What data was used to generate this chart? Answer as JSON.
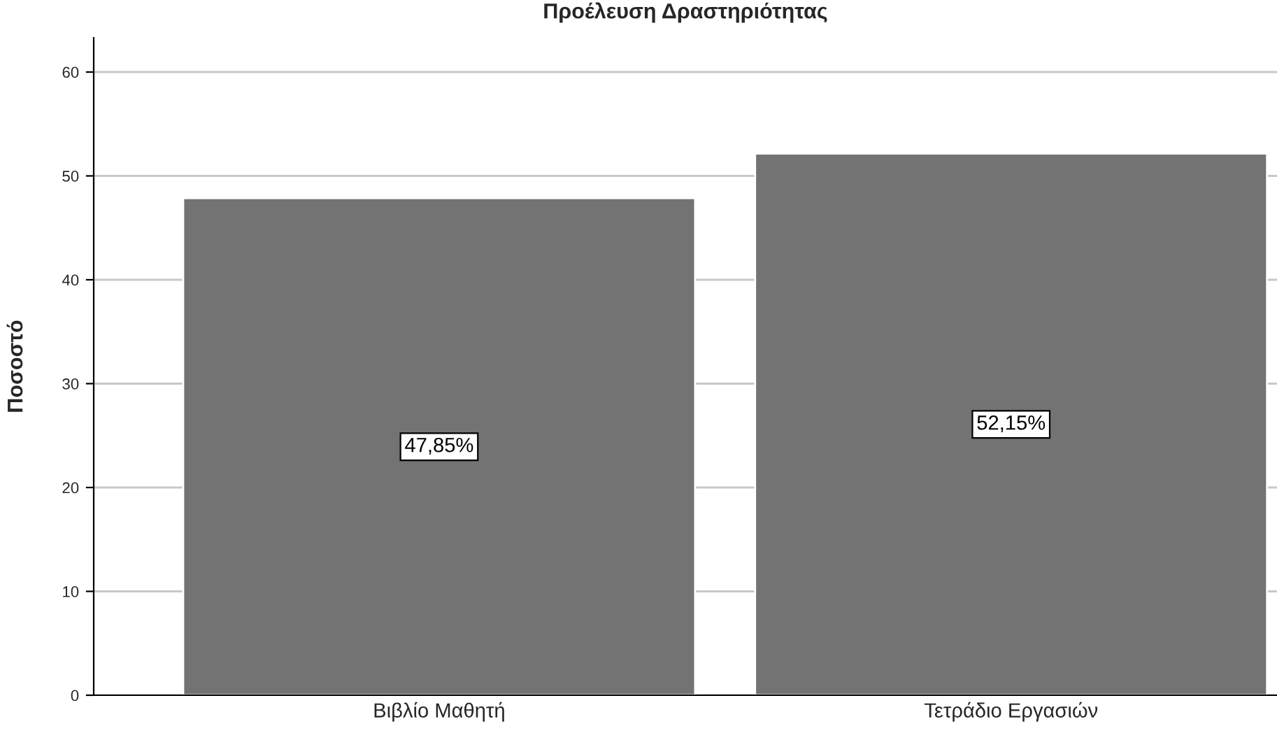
{
  "chart_data": {
    "type": "bar",
    "title": "Προέλευση Δραστηριότητας",
    "ylabel": "Ποσοστό",
    "categories": [
      "Βιβλίο Μαθητή",
      "Τετράδιο Εργασιών"
    ],
    "values": [
      47.85,
      52.15
    ],
    "color": "#737373",
    "value_labels": [
      "47,85%",
      "52,15%"
    ],
    "ylim": [
      0,
      63.3
    ],
    "yticks": [
      0,
      10,
      20,
      30,
      40,
      50,
      60
    ],
    "grid": "y"
  }
}
